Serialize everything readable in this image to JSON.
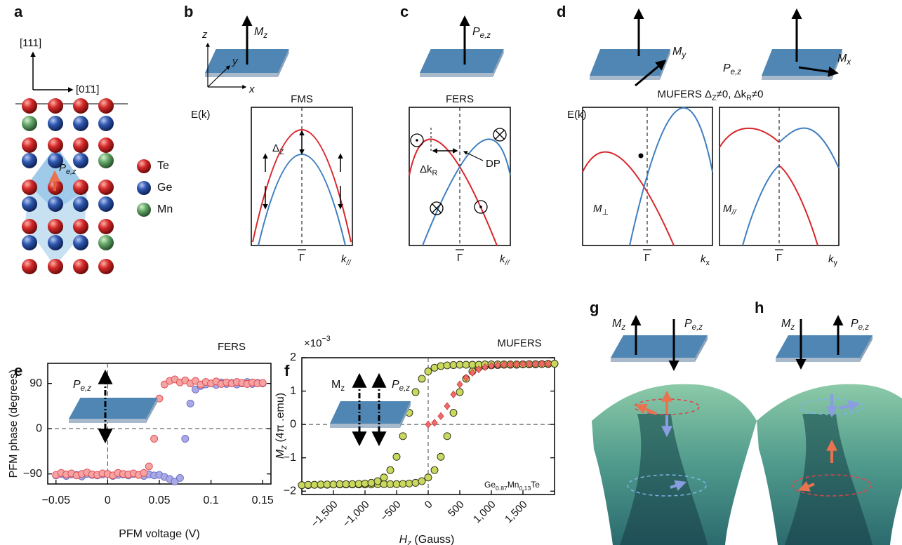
{
  "panels": {
    "a": {
      "label": "a",
      "dir_111": "[111]",
      "dir_011": "[01̄1]",
      "polarization": [
        "P",
        "e,z"
      ],
      "legend": [
        "Te",
        "Ge",
        "Mn"
      ]
    },
    "b": {
      "label": "b",
      "axes": [
        "z",
        "y",
        "x"
      ],
      "moment": [
        "M",
        "z"
      ],
      "title": "FMS",
      "energy": "E(k)",
      "gap": [
        "Δ",
        "Z"
      ],
      "gamma": "Γ",
      "k": [
        "k",
        "//"
      ]
    },
    "c": {
      "label": "c",
      "polarization": [
        "P",
        "e,z"
      ],
      "title": "FERS",
      "shift": [
        "Δk",
        "R"
      ],
      "dirac": "DP",
      "gamma": "Γ",
      "k": [
        "k",
        "//"
      ]
    },
    "d": {
      "label": "d",
      "moment_y": [
        "M",
        "y"
      ],
      "polarization": [
        "P",
        "e,z"
      ],
      "moment_x": [
        "M",
        "x"
      ],
      "title": [
        "MUFERS Δ",
        "Z",
        "≠0, Δk",
        "R",
        "≠0"
      ],
      "energy": "E(k)",
      "perp": [
        "M",
        "⊥"
      ],
      "para": [
        "M",
        "//"
      ],
      "gamma_1": "Γ",
      "k_1": [
        "k",
        "x"
      ],
      "gamma_2": "Γ",
      "k_2": [
        "k",
        "y"
      ]
    },
    "g": {
      "label": "g",
      "moment": [
        "M",
        "z"
      ],
      "polarization": [
        "P",
        "e,z"
      ]
    },
    "h": {
      "label": "h",
      "moment": [
        "M",
        "z"
      ],
      "polarization": [
        "P",
        "e,z"
      ]
    }
  },
  "chart_data": [
    {
      "type": "scatter",
      "panel_label": "e",
      "title": "FERS",
      "annotation": [
        "P",
        "e,z"
      ],
      "xlabel": "PFM voltage (V)",
      "ylabel": "PFM phase (degrees)",
      "xlim": [
        -0.058,
        0.158
      ],
      "ylim": [
        -110,
        130
      ],
      "xticks": [
        {
          "value": -0.05,
          "label": "−0.05"
        },
        0,
        0.05,
        0.1,
        0.15
      ],
      "yticks": [
        {
          "value": -90,
          "label": "−90"
        },
        0,
        90
      ],
      "x": [
        -0.05,
        -0.045,
        -0.04,
        -0.035,
        -0.03,
        -0.025,
        -0.02,
        -0.015,
        -0.01,
        -0.005,
        0,
        0.005,
        0.01,
        0.015,
        0.02,
        0.025,
        0.03,
        0.035,
        0.04,
        0.045,
        0.05,
        0.055,
        0.06,
        0.065,
        0.07,
        0.075,
        0.08,
        0.085,
        0.09,
        0.095,
        0.1,
        0.105,
        0.11,
        0.115,
        0.12,
        0.125,
        0.13,
        0.135,
        0.14,
        0.145,
        0.15
      ],
      "series": [
        {
          "color": "#a9a9e6",
          "edge": "#6c6cc2",
          "marker": "circle",
          "values": [
            -93,
            -90,
            -94,
            -91,
            -92,
            -95,
            -90,
            -92,
            -93,
            -91,
            -90,
            -94,
            -92,
            -91,
            -93,
            -90,
            -92,
            -94,
            -91,
            -93,
            -92,
            -96,
            -100,
            -105,
            -98,
            -20,
            50,
            78,
            85,
            88,
            90,
            87,
            92,
            89,
            91,
            88,
            90,
            93,
            89,
            91,
            90
          ]
        },
        {
          "color": "#f5a3a3",
          "edge": "#e0494f",
          "marker": "circle",
          "values": [
            -92,
            -88,
            -91,
            -89,
            -93,
            -90,
            -87,
            -91,
            -92,
            -89,
            -90,
            -93,
            -88,
            -90,
            -91,
            -89,
            -92,
            -88,
            -75,
            -20,
            60,
            88,
            95,
            98,
            92,
            96,
            90,
            95,
            88,
            93,
            90,
            94,
            89,
            92,
            90,
            93,
            91,
            89,
            92,
            90,
            91
          ]
        }
      ]
    },
    {
      "type": "scatter",
      "panel_label": "f",
      "title": "MUFERS",
      "multiplier": [
        "×10",
        "−3"
      ],
      "annotation_moment": [
        "M",
        "z"
      ],
      "annotation_polarization": [
        "P",
        "e,z"
      ],
      "sample": [
        "Ge",
        "0.87",
        "Mn",
        "0.13",
        "Te"
      ],
      "xlabel": [
        "H",
        "z",
        " (Gauss)"
      ],
      "ylabel": [
        "M",
        "z",
        " (4π .emu)"
      ],
      "xlim": [
        -2000,
        2000
      ],
      "ylim": [
        -2.1,
        2
      ],
      "xticks": [
        {
          "value": -1500,
          "label": "−1,500"
        },
        {
          "value": -1000,
          "label": "−1,000"
        },
        {
          "value": -500,
          "label": "−500"
        },
        0,
        500,
        {
          "value": 1000,
          "label": "1,000"
        },
        {
          "value": 1500,
          "label": "1,500"
        }
      ],
      "yticks": [
        {
          "value": -2,
          "label": "−2"
        },
        {
          "value": -1,
          "label": "−1"
        },
        0,
        1,
        2
      ],
      "x": [
        -2000,
        -1900,
        -1800,
        -1700,
        -1600,
        -1500,
        -1400,
        -1300,
        -1200,
        -1100,
        -1000,
        -900,
        -800,
        -700,
        -600,
        -500,
        -400,
        -300,
        -200,
        -100,
        0,
        100,
        200,
        300,
        400,
        500,
        600,
        700,
        800,
        900,
        1000,
        1100,
        1200,
        1300,
        1400,
        1500,
        1600,
        1700,
        1800,
        1900,
        2000
      ],
      "series": [
        {
          "color": "#c9d95f",
          "edge": "#2a2a10",
          "marker": "circle",
          "values": [
            -1.82,
            -1.82,
            -1.81,
            -1.81,
            -1.81,
            -1.8,
            -1.8,
            -1.8,
            -1.8,
            -1.8,
            -1.8,
            -1.8,
            -1.79,
            -1.79,
            -1.79,
            -1.79,
            -1.78,
            -1.77,
            -1.75,
            -1.7,
            -1.59,
            -1.37,
            -0.97,
            -0.35,
            0.35,
            0.97,
            1.37,
            1.59,
            1.7,
            1.75,
            1.77,
            1.78,
            1.79,
            1.79,
            1.79,
            1.8,
            1.8,
            1.8,
            1.81,
            1.81,
            1.82
          ]
        },
        {
          "color": "#c9d95f",
          "edge": "#2a2a10",
          "marker": "circle",
          "values": [
            -1.82,
            -1.81,
            -1.81,
            -1.8,
            -1.8,
            -1.8,
            -1.79,
            -1.79,
            -1.79,
            -1.78,
            -1.77,
            -1.75,
            -1.7,
            -1.59,
            -1.37,
            -0.97,
            -0.35,
            0.35,
            0.97,
            1.37,
            1.59,
            1.7,
            1.75,
            1.77,
            1.78,
            1.79,
            1.79,
            1.79,
            1.79,
            1.8,
            1.8,
            1.8,
            1.8,
            1.8,
            1.8,
            1.8,
            1.81,
            1.81,
            1.81,
            1.82,
            1.82
          ]
        },
        {
          "color": "#f06a6a",
          "edge": "#c93a3a",
          "marker": "diamond",
          "x": [
            0,
            100,
            200,
            300,
            400,
            500,
            600,
            700,
            800,
            900,
            1000,
            1100,
            1200,
            1300,
            1400,
            1500,
            1600,
            1700,
            1800,
            1900
          ],
          "values": [
            0,
            0.05,
            0.25,
            0.55,
            0.9,
            1.2,
            1.4,
            1.55,
            1.65,
            1.72,
            1.76,
            1.78,
            1.79,
            1.8,
            1.8,
            1.81,
            1.81,
            1.81,
            1.82,
            1.82
          ]
        }
      ]
    }
  ]
}
